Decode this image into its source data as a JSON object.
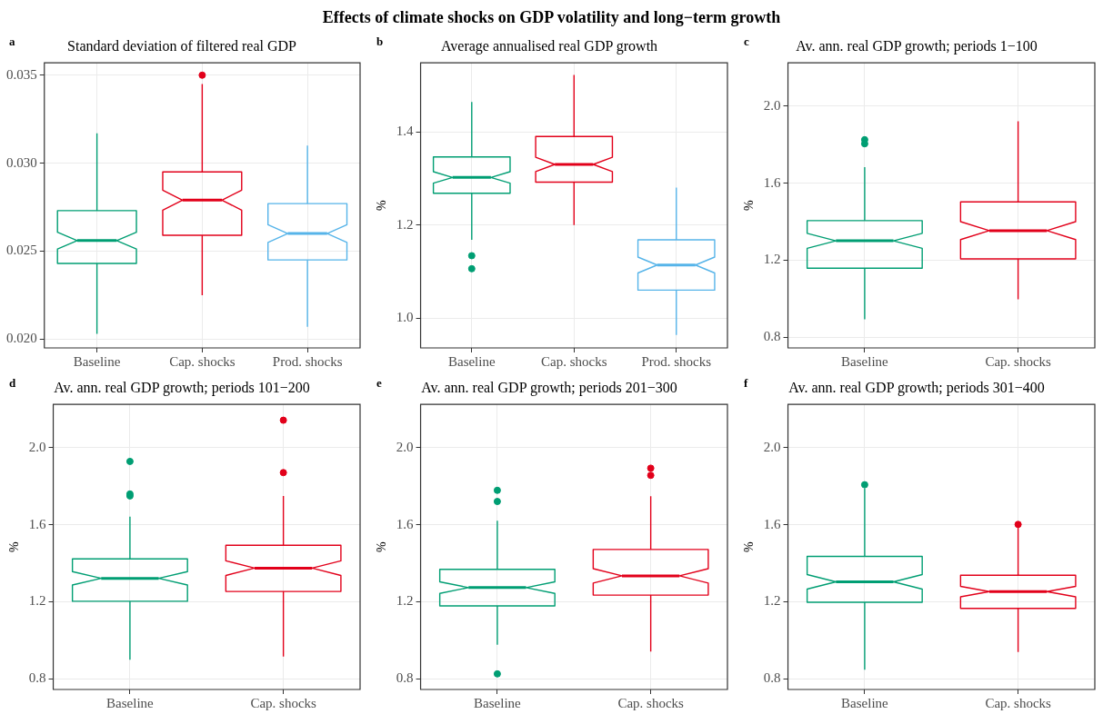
{
  "chart_data": [
    {
      "type": "box",
      "title": "Standard deviation of filtered real GDP",
      "annotations": [
        "a",
        "Effects of climate shocks on GDP volatility and long−term growth"
      ],
      "categories": [
        "Baseline",
        "Cap. shocks",
        "Prod. shocks"
      ],
      "colors": [
        "#009e73",
        "#e2001a",
        "#56b4e9"
      ],
      "ylim": [
        0.0195,
        0.0357
      ],
      "yticks": [
        {
          "value": 0.02,
          "label": "0.020"
        },
        {
          "value": 0.025,
          "label": "0.025"
        },
        {
          "value": 0.03,
          "label": "0.030"
        },
        {
          "value": 0.035,
          "label": "0.035"
        }
      ],
      "grid": true,
      "boxes": [
        {
          "low": 0.0203,
          "q1": 0.0243,
          "median": 0.0256,
          "q3": 0.0273,
          "high": 0.0317
        },
        {
          "low": 0.0225,
          "q1": 0.0259,
          "median": 0.0279,
          "q3": 0.0295,
          "high": 0.0345,
          "outliers": [
            0.035
          ]
        },
        {
          "low": 0.0207,
          "q1": 0.0245,
          "median": 0.026,
          "q3": 0.0277,
          "high": 0.031
        }
      ]
    },
    {
      "type": "box",
      "title": "Average annualised real GDP growth",
      "ylabel": "%",
      "annotations": [
        "b"
      ],
      "categories": [
        "Baseline",
        "Cap. shocks",
        "Prod. shocks"
      ],
      "colors": [
        "#009e73",
        "#e2001a",
        "#56b4e9"
      ],
      "ylim": [
        0.936,
        1.548
      ],
      "yticks": [
        {
          "value": 1,
          "label": "1.0"
        },
        {
          "value": 1.2,
          "label": "1.2"
        },
        {
          "value": 1.4,
          "label": "1.4"
        }
      ],
      "grid": true,
      "boxes": [
        {
          "low": 1.168,
          "q1": 1.268,
          "median": 1.302,
          "q3": 1.346,
          "high": 1.464,
          "outliers": [
            1.134,
            1.106
          ]
        },
        {
          "low": 1.2,
          "q1": 1.292,
          "median": 1.33,
          "q3": 1.39,
          "high": 1.522
        },
        {
          "low": 0.964,
          "q1": 1.06,
          "median": 1.114,
          "q3": 1.168,
          "high": 1.28
        }
      ]
    },
    {
      "type": "box",
      "title": "Av. ann. real GDP growth; periods 1−100",
      "ylabel": "%",
      "annotations": [
        "c"
      ],
      "categories": [
        "Baseline",
        "Cap. shocks"
      ],
      "colors": [
        "#009e73",
        "#e2001a"
      ],
      "ylim": [
        0.745,
        2.225
      ],
      "yticks": [
        {
          "value": 0.8,
          "label": "0.8"
        },
        {
          "value": 1.2,
          "label": "1.2"
        },
        {
          "value": 1.6,
          "label": "1.6"
        },
        {
          "value": 2,
          "label": "2.0"
        }
      ],
      "grid": true,
      "boxes": [
        {
          "low": 0.894,
          "q1": 1.159,
          "median": 1.301,
          "q3": 1.406,
          "high": 1.683,
          "outliers": [
            1.826,
            1.805
          ]
        },
        {
          "low": 0.997,
          "q1": 1.207,
          "median": 1.354,
          "q3": 1.503,
          "high": 1.922
        }
      ]
    },
    {
      "type": "box",
      "title": "Av. ann. real GDP growth; periods 101−200",
      "ylabel": "%",
      "annotations": [
        "d"
      ],
      "categories": [
        "Baseline",
        "Cap. shocks"
      ],
      "colors": [
        "#009e73",
        "#e2001a"
      ],
      "ylim": [
        0.745,
        2.225
      ],
      "yticks": [
        {
          "value": 0.8,
          "label": "0.8"
        },
        {
          "value": 1.2,
          "label": "1.2"
        },
        {
          "value": 1.6,
          "label": "1.6"
        },
        {
          "value": 2,
          "label": "2.0"
        }
      ],
      "grid": true,
      "boxes": [
        {
          "low": 0.9,
          "q1": 1.203,
          "median": 1.322,
          "q3": 1.423,
          "high": 1.642,
          "outliers": [
            1.929,
            1.76,
            1.75
          ]
        },
        {
          "low": 0.916,
          "q1": 1.254,
          "median": 1.375,
          "q3": 1.494,
          "high": 1.75,
          "outliers": [
            2.143,
            1.871
          ]
        }
      ]
    },
    {
      "type": "box",
      "title": "Av. ann. real GDP growth; periods 201−300",
      "ylabel": "%",
      "annotations": [
        "e"
      ],
      "categories": [
        "Baseline",
        "Cap. shocks"
      ],
      "colors": [
        "#009e73",
        "#e2001a"
      ],
      "ylim": [
        0.745,
        2.225
      ],
      "yticks": [
        {
          "value": 0.8,
          "label": "0.8"
        },
        {
          "value": 1.2,
          "label": "1.2"
        },
        {
          "value": 1.6,
          "label": "1.6"
        },
        {
          "value": 2,
          "label": "2.0"
        }
      ],
      "grid": true,
      "boxes": [
        {
          "low": 0.977,
          "q1": 1.179,
          "median": 1.274,
          "q3": 1.369,
          "high": 1.621,
          "outliers": [
            1.779,
            1.721,
            0.826
          ]
        },
        {
          "low": 0.942,
          "q1": 1.235,
          "median": 1.335,
          "q3": 1.472,
          "high": 1.749,
          "outliers": [
            1.894,
            1.857
          ]
        }
      ]
    },
    {
      "type": "box",
      "title": "Av. ann. real GDP growth; periods 301−400",
      "ylabel": "%",
      "annotations": [
        "f"
      ],
      "categories": [
        "Baseline",
        "Cap. shocks"
      ],
      "colors": [
        "#009e73",
        "#e2001a"
      ],
      "ylim": [
        0.745,
        2.225
      ],
      "yticks": [
        {
          "value": 0.8,
          "label": "0.8"
        },
        {
          "value": 1.2,
          "label": "1.2"
        },
        {
          "value": 1.6,
          "label": "1.6"
        },
        {
          "value": 2,
          "label": "2.0"
        }
      ],
      "grid": true,
      "boxes": [
        {
          "low": 0.848,
          "q1": 1.198,
          "median": 1.304,
          "q3": 1.436,
          "high": 1.79,
          "outliers": [
            1.808
          ]
        },
        {
          "low": 0.94,
          "q1": 1.166,
          "median": 1.253,
          "q3": 1.338,
          "high": 1.59,
          "outliers": [
            1.602
          ]
        }
      ]
    }
  ]
}
